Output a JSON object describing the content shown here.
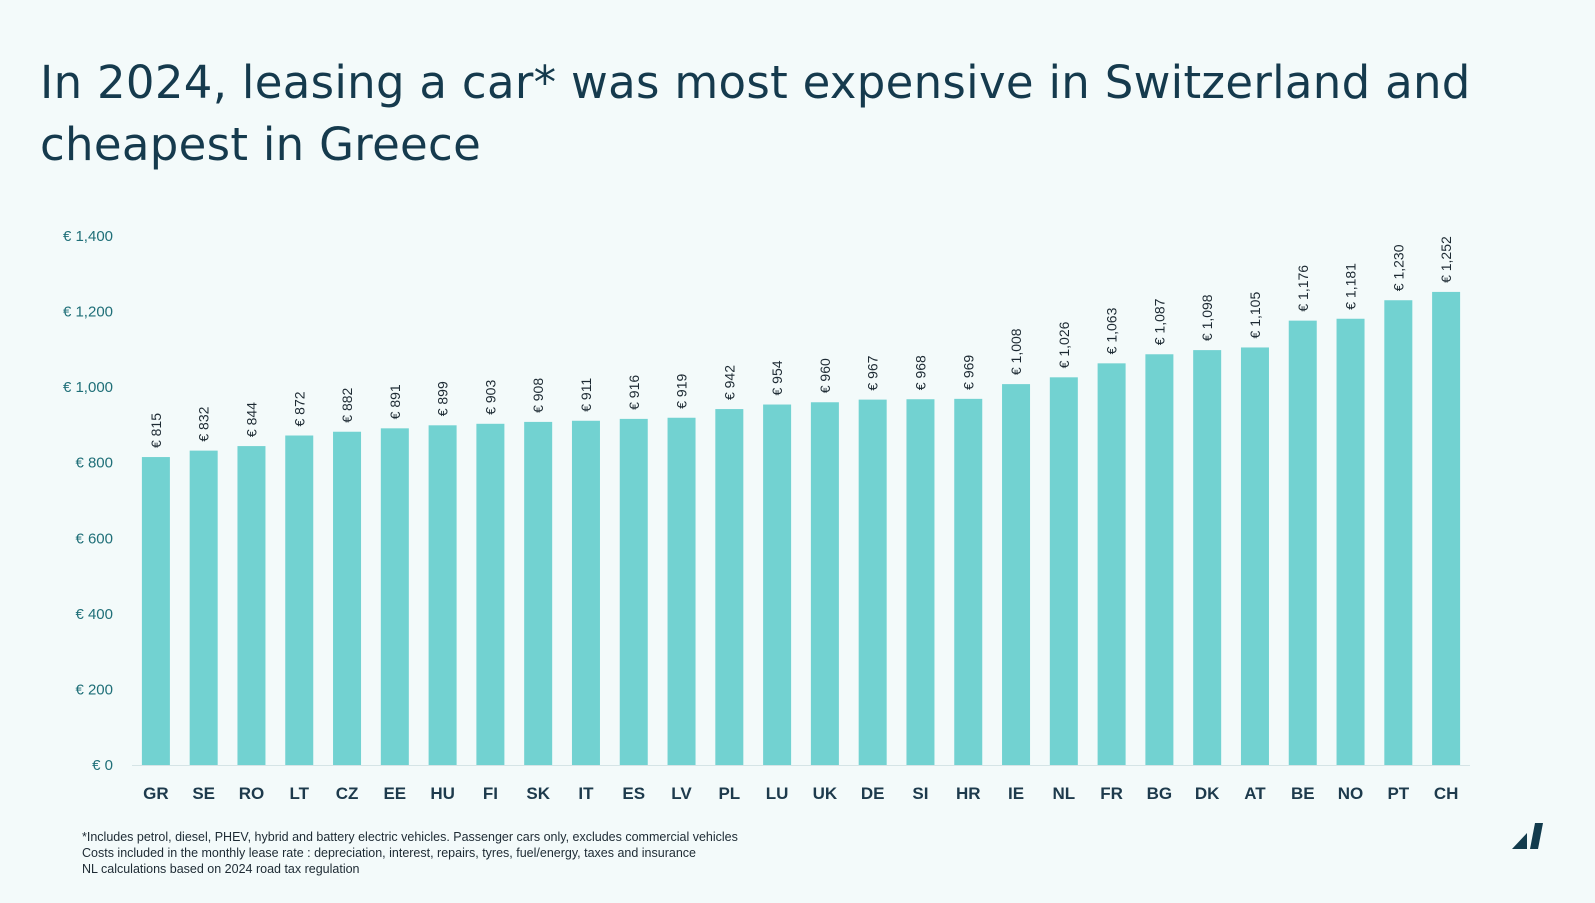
{
  "title": "In 2024, leasing a car* was most expensive in Switzerland and cheapest in Greece",
  "footnotes": [
    "*Includes petrol, diesel, PHEV, hybrid and battery electric vehicles. Passenger cars only, excludes commercial vehicles",
    "Costs included in the monthly lease rate : depreciation, interest, repairs, tyres, fuel/energy, taxes and insurance",
    "NL calculations based on 2024 road tax regulation"
  ],
  "logo_icon": "brand-logo-icon",
  "colors": {
    "bar": "#72d2d1",
    "title": "#153a4d",
    "axis_label": "#1f6f78",
    "category_label": "#1d3a4c",
    "data_label": "#1d2a33",
    "background": "#f3fafa",
    "logo": "#123b4d"
  },
  "chart_data": {
    "type": "bar",
    "categories": [
      "GR",
      "SE",
      "RO",
      "LT",
      "CZ",
      "EE",
      "HU",
      "FI",
      "SK",
      "IT",
      "ES",
      "LV",
      "PL",
      "LU",
      "UK",
      "DE",
      "SI",
      "HR",
      "IE",
      "NL",
      "FR",
      "BG",
      "DK",
      "AT",
      "BE",
      "NO",
      "PT",
      "CH"
    ],
    "values": [
      815,
      832,
      844,
      872,
      882,
      891,
      899,
      903,
      908,
      911,
      916,
      919,
      942,
      954,
      960,
      967,
      968,
      969,
      1008,
      1026,
      1063,
      1087,
      1098,
      1105,
      1176,
      1181,
      1230,
      1252
    ],
    "data_labels": [
      "€ 815",
      "€ 832",
      "€ 844",
      "€ 872",
      "€ 882",
      "€ 891",
      "€ 899",
      "€ 903",
      "€ 908",
      "€ 911",
      "€ 916",
      "€ 919",
      "€ 942",
      "€ 954",
      "€ 960",
      "€ 967",
      "€ 968",
      "€ 969",
      "€ 1,008",
      "€ 1,026",
      "€ 1,063",
      "€ 1,087",
      "€ 1,098",
      "€ 1,105",
      "€ 1,176",
      "€ 1,181",
      "€ 1,230",
      "€ 1,252"
    ],
    "yticks": [
      0,
      200,
      400,
      600,
      800,
      1000,
      1200,
      1400
    ],
    "ytick_labels": [
      "€ 0",
      "€ 200",
      "€ 400",
      "€ 600",
      "€ 800",
      "€ 1,000",
      "€ 1,200",
      "€ 1,400"
    ],
    "ylim": [
      0,
      1400
    ],
    "grid": false,
    "legend": "none"
  }
}
